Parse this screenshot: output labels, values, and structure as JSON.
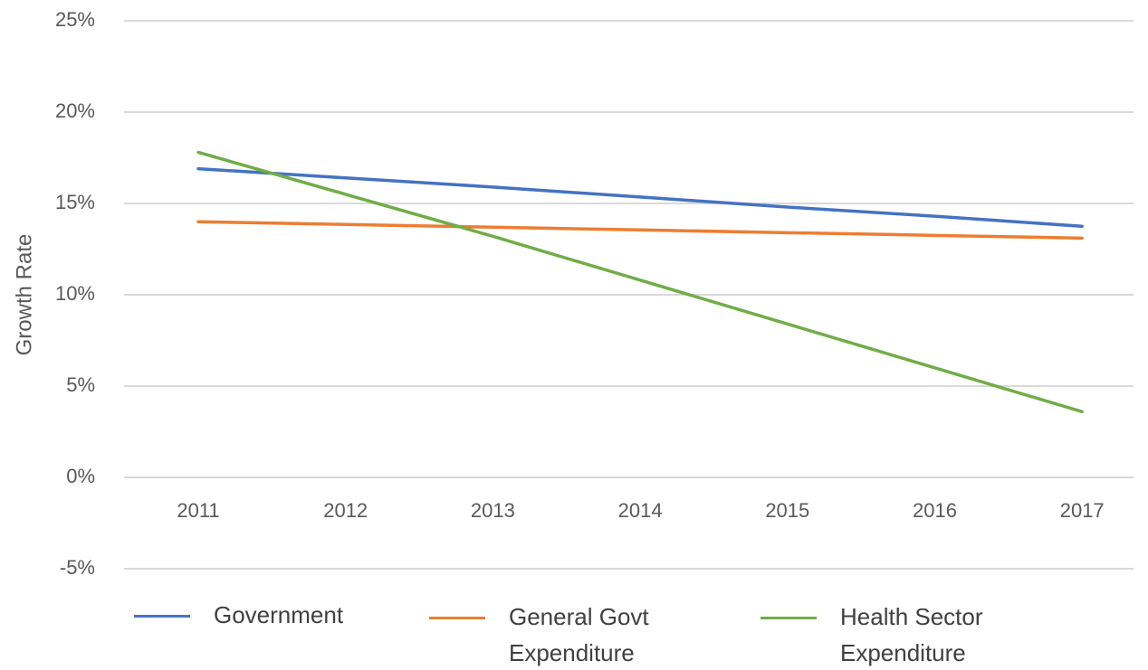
{
  "chart_data": {
    "type": "line",
    "y_label": "Growth Rate",
    "categories": [
      "2011",
      "2012",
      "2013",
      "2014",
      "2015",
      "2016",
      "2017"
    ],
    "series": [
      {
        "name": "Government",
        "color": "#4472c4",
        "values": [
          16.9,
          16.4,
          15.9,
          15.35,
          14.8,
          14.3,
          13.75
        ]
      },
      {
        "name": "General Govt Expenditure",
        "color": "#ed7d31",
        "values": [
          14.0,
          13.85,
          13.7,
          13.55,
          13.4,
          13.25,
          13.1
        ]
      },
      {
        "name": "Health Sector Expenditure",
        "color": "#70ad47",
        "values": [
          17.8,
          15.5,
          13.2,
          10.8,
          8.4,
          6.0,
          3.6
        ]
      }
    ],
    "ylim": [
      -5,
      25
    ],
    "yticks": [
      {
        "value": -5,
        "label": "-5%"
      },
      {
        "value": 0,
        "label": "0%"
      },
      {
        "value": 5,
        "label": "5%"
      },
      {
        "value": 10,
        "label": "10%"
      },
      {
        "value": 15,
        "label": "15%"
      },
      {
        "value": 20,
        "label": "20%"
      },
      {
        "value": 25,
        "label": "25%"
      }
    ],
    "grid": true,
    "legend": "bottom"
  }
}
